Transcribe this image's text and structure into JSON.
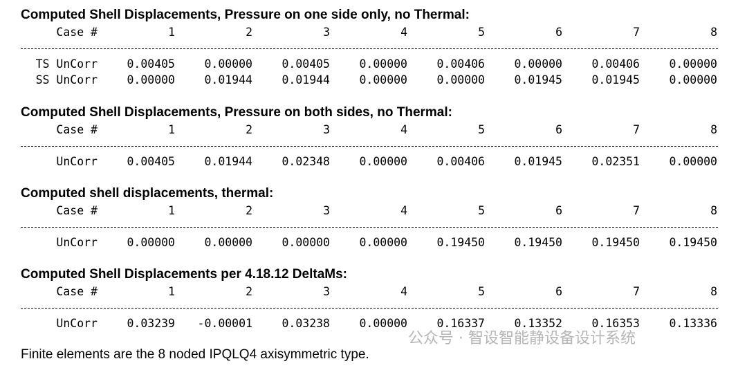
{
  "sections": [
    {
      "title": "Computed Shell Displacements, Pressure on one side only, no Thermal:",
      "header": {
        "label": "Case #",
        "columns": [
          "1",
          "2",
          "3",
          "4",
          "5",
          "6",
          "7",
          "8"
        ]
      },
      "rows": [
        {
          "label": "TS UnCorr",
          "values": [
            "0.00405",
            "0.00000",
            "0.00405",
            "0.00000",
            "0.00406",
            "0.00000",
            "0.00406",
            "0.00000"
          ]
        },
        {
          "label": "SS UnCorr",
          "values": [
            "0.00000",
            "0.01944",
            "0.01944",
            "0.00000",
            "0.00000",
            "0.01945",
            "0.01945",
            "0.00000"
          ]
        }
      ]
    },
    {
      "title": "Computed Shell Displacements, Pressure on both sides, no Thermal:",
      "header": {
        "label": "Case #",
        "columns": [
          "1",
          "2",
          "3",
          "4",
          "5",
          "6",
          "7",
          "8"
        ]
      },
      "rows": [
        {
          "label": "UnCorr",
          "values": [
            "0.00405",
            "0.01944",
            "0.02348",
            "0.00000",
            "0.00406",
            "0.01945",
            "0.02351",
            "0.00000"
          ]
        }
      ]
    },
    {
      "title": "Computed shell displacements, thermal:",
      "header": {
        "label": "Case #",
        "columns": [
          "1",
          "2",
          "3",
          "4",
          "5",
          "6",
          "7",
          "8"
        ]
      },
      "rows": [
        {
          "label": "UnCorr",
          "values": [
            "0.00000",
            "0.00000",
            "0.00000",
            "0.00000",
            "0.19450",
            "0.19450",
            "0.19450",
            "0.19450"
          ]
        }
      ]
    },
    {
      "title": "Computed Shell Displacements per 4.18.12 DeltaMs:",
      "header": {
        "label": "Case #",
        "columns": [
          "1",
          "2",
          "3",
          "4",
          "5",
          "6",
          "7",
          "8"
        ]
      },
      "rows": [
        {
          "label": "UnCorr",
          "values": [
            "0.03239",
            "-0.00001",
            "0.03238",
            "0.00000",
            "0.16337",
            "0.13352",
            "0.16353",
            "0.13336"
          ]
        }
      ]
    }
  ],
  "footer": "Finite elements are the 8 noded IPQLQ4 axisymmetric type.",
  "watermark": "公众号 · 智设智能静设备设计系统"
}
